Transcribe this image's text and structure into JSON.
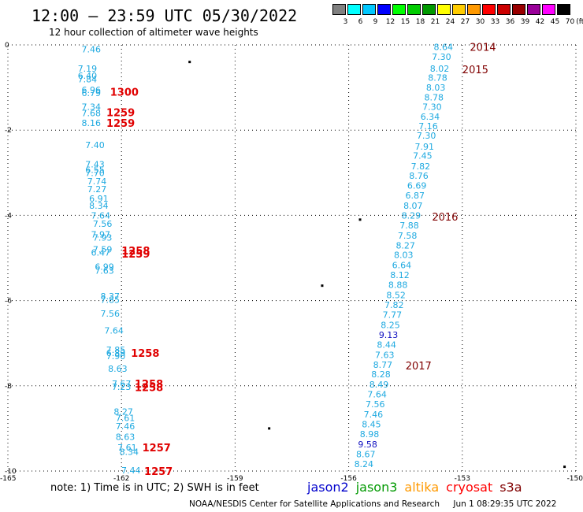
{
  "title": "12:00 – 23:59 UTC 05/30/2022",
  "subtitle": "12 hour collection of altimeter wave heights",
  "legend": {
    "unit": "(ft)",
    "swatches": [
      {
        "label": "3",
        "color": "#808080"
      },
      {
        "label": "6",
        "color": "#00ffff"
      },
      {
        "label": "9",
        "color": "#00c8ff"
      },
      {
        "label": "12",
        "color": "#0000ff"
      },
      {
        "label": "15",
        "color": "#00ff00"
      },
      {
        "label": "18",
        "color": "#00cc00"
      },
      {
        "label": "21",
        "color": "#009900"
      },
      {
        "label": "24",
        "color": "#ffff00"
      },
      {
        "label": "27",
        "color": "#ffcc00"
      },
      {
        "label": "30",
        "color": "#ff9900"
      },
      {
        "label": "33",
        "color": "#ff0000"
      },
      {
        "label": "36",
        "color": "#cc0000"
      },
      {
        "label": "39",
        "color": "#990000"
      },
      {
        "label": "42",
        "color": "#990099"
      },
      {
        "label": "45",
        "color": "#ff00ff"
      },
      {
        "label": "70",
        "color": "#000000"
      }
    ]
  },
  "axes": {
    "x_ticks": [
      "-165",
      "-162",
      "-159",
      "-156",
      "-153",
      "-150"
    ],
    "y_ticks": [
      "0",
      "-2",
      "-4",
      "-6",
      "-8",
      "-10"
    ]
  },
  "colors": {
    "cyan": "#1ea9e0",
    "blue": "#1010c0",
    "red": "#e00000",
    "darkred": "#800000",
    "grid": "#000000"
  },
  "tracks": {
    "west": [
      {
        "v": "7.46",
        "lon": -162.8,
        "lat": -0.1
      },
      {
        "v": "7.19",
        "lon": -162.9,
        "lat": -0.55
      },
      {
        "v": "6.40",
        "lon": -162.9,
        "lat": -0.72
      },
      {
        "v": "7.84",
        "lon": -162.9,
        "lat": -0.8
      },
      {
        "v": "6.96",
        "lon": -162.8,
        "lat": -1.05
      },
      {
        "v": "6.79",
        "lon": -162.8,
        "lat": -1.13
      },
      {
        "v": "7.34",
        "lon": -162.8,
        "lat": -1.45
      },
      {
        "v": "7.68",
        "lon": -162.8,
        "lat": -1.6
      },
      {
        "v": "8.16",
        "lon": -162.8,
        "lat": -1.83
      },
      {
        "v": "7.40",
        "lon": -162.7,
        "lat": -2.35
      },
      {
        "v": "7.43",
        "lon": -162.7,
        "lat": -2.8
      },
      {
        "v": "6.55",
        "lon": -162.7,
        "lat": -2.93
      },
      {
        "v": "7.70",
        "lon": -162.7,
        "lat": -3.0
      },
      {
        "v": "7.74",
        "lon": -162.65,
        "lat": -3.2
      },
      {
        "v": "7.27",
        "lon": -162.65,
        "lat": -3.38
      },
      {
        "v": "6.91",
        "lon": -162.6,
        "lat": -3.6
      },
      {
        "v": "8.34",
        "lon": -162.6,
        "lat": -3.77
      },
      {
        "v": "7.64",
        "lon": -162.55,
        "lat": -4.0
      },
      {
        "v": "7.56",
        "lon": -162.5,
        "lat": -4.2
      },
      {
        "v": "7.97",
        "lon": -162.55,
        "lat": -4.45
      },
      {
        "v": "7.93",
        "lon": -162.5,
        "lat": -4.52
      },
      {
        "v": "7.59",
        "lon": -162.5,
        "lat": -4.8
      },
      {
        "v": "6.47",
        "lon": -162.55,
        "lat": -4.87
      },
      {
        "v": "6.99",
        "lon": -162.45,
        "lat": -5.2
      },
      {
        "v": "7.63",
        "lon": -162.45,
        "lat": -5.3
      },
      {
        "v": "8.37",
        "lon": -162.3,
        "lat": -5.9
      },
      {
        "v": "7.85",
        "lon": -162.3,
        "lat": -5.98
      },
      {
        "v": "7.56",
        "lon": -162.3,
        "lat": -6.3
      },
      {
        "v": "7.64",
        "lon": -162.2,
        "lat": -6.7
      },
      {
        "v": "7.85",
        "lon": -162.15,
        "lat": -7.15
      },
      {
        "v": "6.89",
        "lon": -162.15,
        "lat": -7.23
      },
      {
        "v": "7.90",
        "lon": -162.15,
        "lat": -7.3
      },
      {
        "v": "8.63",
        "lon": -162.1,
        "lat": -7.6
      },
      {
        "v": "7.67",
        "lon": -162.0,
        "lat": -7.95
      },
      {
        "v": "7.23",
        "lon": -162.0,
        "lat": -8.02
      },
      {
        "v": "8.27",
        "lon": -161.95,
        "lat": -8.6
      },
      {
        "v": "7.61",
        "lon": -161.9,
        "lat": -8.75
      },
      {
        "v": "7.46",
        "lon": -161.9,
        "lat": -8.95
      },
      {
        "v": "8.63",
        "lon": -161.9,
        "lat": -9.2
      },
      {
        "v": "7.61",
        "lon": -161.85,
        "lat": -9.45
      },
      {
        "v": "8.34",
        "lon": -161.8,
        "lat": -9.55
      },
      {
        "v": "7.44",
        "lon": -161.75,
        "lat": -9.98
      }
    ],
    "east": [
      {
        "v": "8.64",
        "lon": -153.5,
        "lat": -0.05
      },
      {
        "v": "7.30",
        "lon": -153.55,
        "lat": -0.28
      },
      {
        "v": "8.02",
        "lon": -153.6,
        "lat": -0.55
      },
      {
        "v": "8.78",
        "lon": -153.65,
        "lat": -0.77
      },
      {
        "v": "8.03",
        "lon": -153.7,
        "lat": -1.0
      },
      {
        "v": "8.78",
        "lon": -153.75,
        "lat": -1.23
      },
      {
        "v": "7.30",
        "lon": -153.8,
        "lat": -1.45
      },
      {
        "v": "6.34",
        "lon": -153.85,
        "lat": -1.68
      },
      {
        "v": "7.16",
        "lon": -153.9,
        "lat": -1.9
      },
      {
        "v": "7.30",
        "lon": -153.95,
        "lat": -2.13
      },
      {
        "v": "7.91",
        "lon": -154.0,
        "lat": -2.38
      },
      {
        "v": "7.45",
        "lon": -154.05,
        "lat": -2.6
      },
      {
        "v": "7.82",
        "lon": -154.1,
        "lat": -2.85
      },
      {
        "v": "8.76",
        "lon": -154.15,
        "lat": -3.07
      },
      {
        "v": "6.69",
        "lon": -154.2,
        "lat": -3.3
      },
      {
        "v": "6.87",
        "lon": -154.25,
        "lat": -3.53
      },
      {
        "v": "8.07",
        "lon": -154.3,
        "lat": -3.77
      },
      {
        "v": "8.29",
        "lon": -154.35,
        "lat": -4.0
      },
      {
        "v": "7.88",
        "lon": -154.4,
        "lat": -4.23
      },
      {
        "v": "7.58",
        "lon": -154.45,
        "lat": -4.47
      },
      {
        "v": "8.27",
        "lon": -154.5,
        "lat": -4.7
      },
      {
        "v": "8.03",
        "lon": -154.55,
        "lat": -4.93
      },
      {
        "v": "6.64",
        "lon": -154.6,
        "lat": -5.17
      },
      {
        "v": "8.12",
        "lon": -154.65,
        "lat": -5.4
      },
      {
        "v": "8.88",
        "lon": -154.7,
        "lat": -5.63
      },
      {
        "v": "8.52",
        "lon": -154.75,
        "lat": -5.87
      },
      {
        "v": "7.82",
        "lon": -154.8,
        "lat": -6.1
      },
      {
        "v": "7.77",
        "lon": -154.85,
        "lat": -6.33
      },
      {
        "v": "8.25",
        "lon": -154.9,
        "lat": -6.57
      },
      {
        "v": "9.13",
        "lon": -154.95,
        "lat": -6.8,
        "blue": true
      },
      {
        "v": "8.44",
        "lon": -155.0,
        "lat": -7.03
      },
      {
        "v": "7.63",
        "lon": -155.05,
        "lat": -7.27
      },
      {
        "v": "8.77",
        "lon": -155.1,
        "lat": -7.5
      },
      {
        "v": "8.28",
        "lon": -155.15,
        "lat": -7.73
      },
      {
        "v": "8.49",
        "lon": -155.2,
        "lat": -7.97
      },
      {
        "v": "7.64",
        "lon": -155.25,
        "lat": -8.2
      },
      {
        "v": "7.56",
        "lon": -155.3,
        "lat": -8.43
      },
      {
        "v": "7.46",
        "lon": -155.35,
        "lat": -8.67
      },
      {
        "v": "8.45",
        "lon": -155.4,
        "lat": -8.9
      },
      {
        "v": "8.98",
        "lon": -155.45,
        "lat": -9.13
      },
      {
        "v": "9.58",
        "lon": -155.5,
        "lat": -9.37,
        "blue": true
      },
      {
        "v": "8.67",
        "lon": -155.55,
        "lat": -9.6
      },
      {
        "v": "8.24",
        "lon": -155.6,
        "lat": -9.83
      }
    ]
  },
  "times": [
    {
      "t": "1300",
      "lon": -162.3,
      "lat": -1.1,
      "c": "red"
    },
    {
      "t": "1259",
      "lon": -162.4,
      "lat": -1.58,
      "c": "red"
    },
    {
      "t": "1259",
      "lon": -162.4,
      "lat": -1.83,
      "c": "red"
    },
    {
      "t": "1258",
      "lon": -162.0,
      "lat": -4.82,
      "c": "red"
    },
    {
      "t": "1259",
      "lon": -162.0,
      "lat": -4.9,
      "c": "red"
    },
    {
      "t": "1258",
      "lon": -161.75,
      "lat": -7.23,
      "c": "red"
    },
    {
      "t": "1258",
      "lon": -161.65,
      "lat": -7.95,
      "c": "red"
    },
    {
      "t": "1258",
      "lon": -161.65,
      "lat": -8.03,
      "c": "red"
    },
    {
      "t": "1257",
      "lon": -161.45,
      "lat": -9.45,
      "c": "red"
    },
    {
      "t": "1257",
      "lon": -161.4,
      "lat": -10.0,
      "c": "red"
    },
    {
      "t": "2014",
      "lon": -152.8,
      "lat": -0.05,
      "c": "darkred"
    },
    {
      "t": "2015",
      "lon": -153.0,
      "lat": -0.57,
      "c": "darkred"
    },
    {
      "t": "2016",
      "lon": -153.8,
      "lat": -4.03,
      "c": "darkred"
    },
    {
      "t": "2017",
      "lon": -154.5,
      "lat": -7.52,
      "c": "darkred"
    }
  ],
  "islands": [
    {
      "lon": -160.2,
      "lat": -0.4
    },
    {
      "lon": -155.7,
      "lat": -4.1
    },
    {
      "lon": -156.7,
      "lat": -5.65
    },
    {
      "lon": -158.1,
      "lat": -9.0
    },
    {
      "lon": -150.3,
      "lat": -9.9
    }
  ],
  "note": "note: 1) Time is in UTC; 2) SWH is in feet",
  "satellites": [
    {
      "name": "jason2",
      "color": "#0000cc"
    },
    {
      "name": "jason3",
      "color": "#009900"
    },
    {
      "name": "altika",
      "color": "#ff9900"
    },
    {
      "name": "cryosat",
      "color": "#ff0000"
    },
    {
      "name": "s3a",
      "color": "#800000"
    }
  ],
  "footer": {
    "org": "NOAA/NESDIS Center for Satellite Applications and Research",
    "timestamp": "Jun  1 08:29:35 UTC 2022"
  }
}
